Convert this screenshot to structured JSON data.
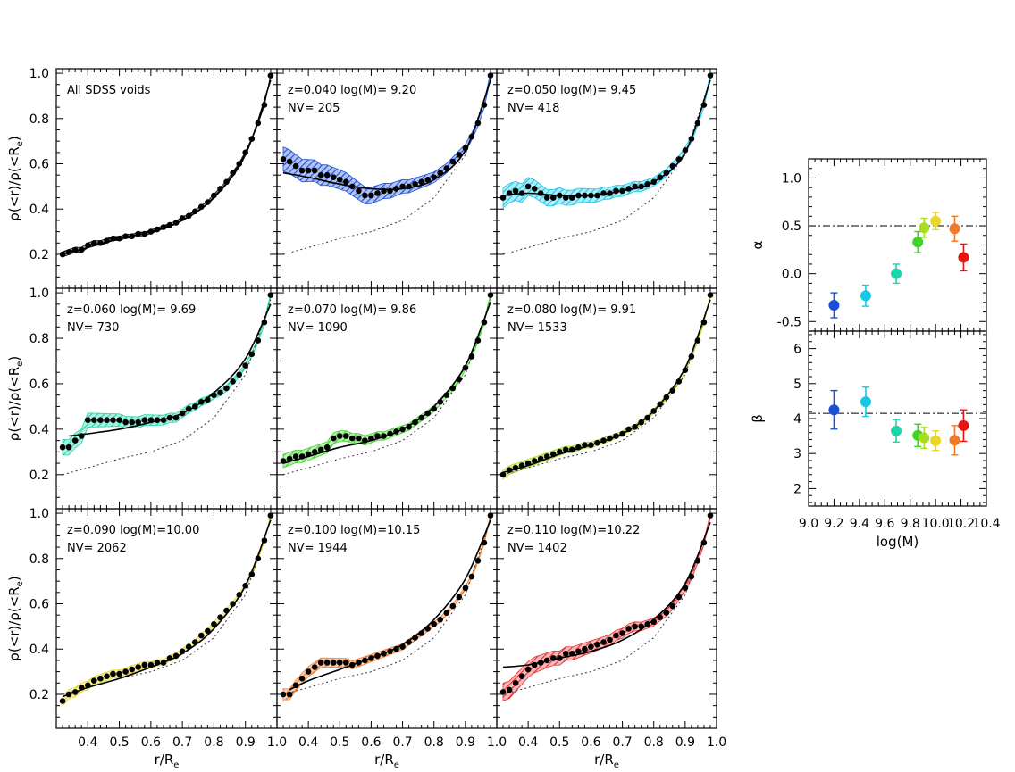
{
  "chart_data": [
    {
      "type": "scatter",
      "panel": "All SDSS voids",
      "label_line1": "All SDSS voids",
      "label_line2": "",
      "color": "#000000",
      "band_half": 0.012,
      "x": [
        0.32,
        0.34,
        0.36,
        0.38,
        0.4,
        0.42,
        0.44,
        0.46,
        0.48,
        0.5,
        0.52,
        0.54,
        0.56,
        0.58,
        0.6,
        0.62,
        0.64,
        0.66,
        0.68,
        0.7,
        0.72,
        0.74,
        0.76,
        0.78,
        0.8,
        0.82,
        0.84,
        0.86,
        0.88,
        0.9,
        0.92,
        0.94,
        0.96,
        0.98
      ],
      "y": [
        0.2,
        0.21,
        0.22,
        0.22,
        0.24,
        0.25,
        0.25,
        0.26,
        0.27,
        0.27,
        0.28,
        0.28,
        0.29,
        0.29,
        0.3,
        0.31,
        0.32,
        0.33,
        0.34,
        0.36,
        0.37,
        0.39,
        0.41,
        0.43,
        0.46,
        0.49,
        0.52,
        0.56,
        0.6,
        0.65,
        0.71,
        0.78,
        0.86,
        0.99
      ],
      "fit": [
        [
          0.32,
          0.2
        ],
        [
          0.4,
          0.23
        ],
        [
          0.5,
          0.27
        ],
        [
          0.6,
          0.3
        ],
        [
          0.7,
          0.35
        ],
        [
          0.8,
          0.45
        ],
        [
          0.9,
          0.64
        ],
        [
          0.98,
          0.97
        ]
      ]
    },
    {
      "type": "scatter",
      "panel": "z=0.040",
      "label_line1": "z=0.040 log(M)= 9.20",
      "label_line2": "NV= 205",
      "color": "#1c4fd8",
      "band_half": 0.055,
      "x": [
        0.32,
        0.34,
        0.36,
        0.38,
        0.4,
        0.42,
        0.44,
        0.46,
        0.48,
        0.5,
        0.52,
        0.54,
        0.56,
        0.58,
        0.6,
        0.62,
        0.64,
        0.66,
        0.68,
        0.7,
        0.72,
        0.74,
        0.76,
        0.78,
        0.8,
        0.82,
        0.84,
        0.86,
        0.88,
        0.9,
        0.92,
        0.94,
        0.96,
        0.98
      ],
      "y": [
        0.62,
        0.61,
        0.59,
        0.57,
        0.57,
        0.57,
        0.55,
        0.55,
        0.54,
        0.53,
        0.52,
        0.5,
        0.48,
        0.46,
        0.46,
        0.47,
        0.48,
        0.48,
        0.49,
        0.5,
        0.5,
        0.51,
        0.52,
        0.53,
        0.54,
        0.56,
        0.58,
        0.61,
        0.64,
        0.67,
        0.72,
        0.78,
        0.86,
        0.99
      ],
      "fit": [
        [
          0.32,
          0.56
        ],
        [
          0.4,
          0.54
        ],
        [
          0.5,
          0.51
        ],
        [
          0.6,
          0.49
        ],
        [
          0.7,
          0.49
        ],
        [
          0.8,
          0.53
        ],
        [
          0.9,
          0.66
        ],
        [
          0.98,
          0.97
        ]
      ]
    },
    {
      "type": "scatter",
      "panel": "z=0.050",
      "label_line1": "z=0.050 log(M)= 9.45",
      "label_line2": "NV= 418",
      "color": "#16c8e8",
      "band_half": 0.045,
      "x": [
        0.32,
        0.34,
        0.36,
        0.38,
        0.4,
        0.42,
        0.44,
        0.46,
        0.48,
        0.5,
        0.52,
        0.54,
        0.56,
        0.58,
        0.6,
        0.62,
        0.64,
        0.66,
        0.68,
        0.7,
        0.72,
        0.74,
        0.76,
        0.78,
        0.8,
        0.82,
        0.84,
        0.86,
        0.88,
        0.9,
        0.92,
        0.94,
        0.96,
        0.98
      ],
      "y": [
        0.45,
        0.47,
        0.48,
        0.47,
        0.5,
        0.49,
        0.47,
        0.45,
        0.45,
        0.46,
        0.45,
        0.45,
        0.46,
        0.46,
        0.46,
        0.46,
        0.47,
        0.47,
        0.48,
        0.48,
        0.49,
        0.5,
        0.5,
        0.51,
        0.52,
        0.54,
        0.56,
        0.59,
        0.62,
        0.66,
        0.71,
        0.78,
        0.86,
        0.99
      ],
      "fit": [
        [
          0.32,
          0.46
        ],
        [
          0.4,
          0.47
        ],
        [
          0.5,
          0.46
        ],
        [
          0.6,
          0.46
        ],
        [
          0.7,
          0.48
        ],
        [
          0.8,
          0.52
        ],
        [
          0.9,
          0.65
        ],
        [
          0.98,
          0.97
        ]
      ]
    },
    {
      "type": "scatter",
      "panel": "z=0.060",
      "label_line1": "z=0.060 log(M)= 9.69",
      "label_line2": "NV= 730",
      "color": "#1fd4a8",
      "band_half": 0.035,
      "x": [
        0.32,
        0.34,
        0.36,
        0.38,
        0.4,
        0.42,
        0.44,
        0.46,
        0.48,
        0.5,
        0.52,
        0.54,
        0.56,
        0.58,
        0.6,
        0.62,
        0.64,
        0.66,
        0.68,
        0.7,
        0.72,
        0.74,
        0.76,
        0.78,
        0.8,
        0.82,
        0.84,
        0.86,
        0.88,
        0.9,
        0.92,
        0.94,
        0.96,
        0.98
      ],
      "y": [
        0.32,
        0.32,
        0.35,
        0.37,
        0.44,
        0.44,
        0.44,
        0.44,
        0.44,
        0.44,
        0.43,
        0.43,
        0.43,
        0.44,
        0.44,
        0.44,
        0.44,
        0.45,
        0.45,
        0.47,
        0.49,
        0.5,
        0.52,
        0.53,
        0.55,
        0.56,
        0.58,
        0.61,
        0.64,
        0.68,
        0.73,
        0.79,
        0.87,
        0.99
      ],
      "fit": [
        [
          0.34,
          0.37
        ],
        [
          0.4,
          0.38
        ],
        [
          0.5,
          0.4
        ],
        [
          0.6,
          0.43
        ],
        [
          0.7,
          0.47
        ],
        [
          0.8,
          0.56
        ],
        [
          0.9,
          0.71
        ],
        [
          0.98,
          0.95
        ]
      ]
    },
    {
      "type": "scatter",
      "panel": "z=0.070",
      "label_line1": "z=0.070 log(M)= 9.86",
      "label_line2": "NV= 1090",
      "color": "#3fd32a",
      "band_half": 0.03,
      "x": [
        0.32,
        0.34,
        0.36,
        0.38,
        0.4,
        0.42,
        0.44,
        0.46,
        0.48,
        0.5,
        0.52,
        0.54,
        0.56,
        0.58,
        0.6,
        0.62,
        0.64,
        0.66,
        0.68,
        0.7,
        0.72,
        0.74,
        0.76,
        0.78,
        0.8,
        0.82,
        0.84,
        0.86,
        0.88,
        0.9,
        0.92,
        0.94,
        0.96,
        0.98
      ],
      "y": [
        0.26,
        0.27,
        0.28,
        0.28,
        0.29,
        0.3,
        0.31,
        0.32,
        0.36,
        0.37,
        0.37,
        0.36,
        0.36,
        0.35,
        0.36,
        0.37,
        0.37,
        0.38,
        0.39,
        0.4,
        0.41,
        0.43,
        0.45,
        0.47,
        0.49,
        0.52,
        0.55,
        0.58,
        0.62,
        0.67,
        0.72,
        0.79,
        0.87,
        0.99
      ],
      "fit": [
        [
          0.32,
          0.25
        ],
        [
          0.4,
          0.28
        ],
        [
          0.5,
          0.32
        ],
        [
          0.6,
          0.35
        ],
        [
          0.7,
          0.4
        ],
        [
          0.8,
          0.5
        ],
        [
          0.9,
          0.68
        ],
        [
          0.98,
          0.96
        ]
      ]
    },
    {
      "type": "scatter",
      "panel": "z=0.080",
      "label_line1": "z=0.080 log(M)= 9.91",
      "label_line2": "NV= 1533",
      "color": "#a8dc1e",
      "band_half": 0.02,
      "x": [
        0.32,
        0.34,
        0.36,
        0.38,
        0.4,
        0.42,
        0.44,
        0.46,
        0.48,
        0.5,
        0.52,
        0.54,
        0.56,
        0.58,
        0.6,
        0.62,
        0.64,
        0.66,
        0.68,
        0.7,
        0.72,
        0.74,
        0.76,
        0.78,
        0.8,
        0.82,
        0.84,
        0.86,
        0.88,
        0.9,
        0.92,
        0.94,
        0.96,
        0.98
      ],
      "y": [
        0.2,
        0.22,
        0.23,
        0.24,
        0.25,
        0.26,
        0.27,
        0.28,
        0.29,
        0.3,
        0.31,
        0.31,
        0.32,
        0.33,
        0.33,
        0.34,
        0.35,
        0.36,
        0.37,
        0.38,
        0.4,
        0.41,
        0.43,
        0.45,
        0.48,
        0.51,
        0.54,
        0.57,
        0.61,
        0.66,
        0.72,
        0.79,
        0.87,
        0.99
      ],
      "fit": [
        [
          0.32,
          0.21
        ],
        [
          0.4,
          0.24
        ],
        [
          0.5,
          0.29
        ],
        [
          0.6,
          0.33
        ],
        [
          0.7,
          0.38
        ],
        [
          0.8,
          0.48
        ],
        [
          0.9,
          0.67
        ],
        [
          0.98,
          0.97
        ]
      ]
    },
    {
      "type": "scatter",
      "panel": "z=0.090",
      "label_line1": "z=0.090 log(M)=10.00",
      "label_line2": "NV= 2062",
      "color": "#e8d62a",
      "band_half": 0.022,
      "x": [
        0.32,
        0.34,
        0.36,
        0.38,
        0.4,
        0.42,
        0.44,
        0.46,
        0.48,
        0.5,
        0.52,
        0.54,
        0.56,
        0.58,
        0.6,
        0.62,
        0.64,
        0.66,
        0.68,
        0.7,
        0.72,
        0.74,
        0.76,
        0.78,
        0.8,
        0.82,
        0.84,
        0.86,
        0.88,
        0.9,
        0.92,
        0.94,
        0.96,
        0.98
      ],
      "y": [
        0.17,
        0.2,
        0.21,
        0.23,
        0.24,
        0.26,
        0.27,
        0.28,
        0.29,
        0.29,
        0.3,
        0.31,
        0.32,
        0.33,
        0.33,
        0.34,
        0.34,
        0.36,
        0.37,
        0.39,
        0.41,
        0.43,
        0.46,
        0.48,
        0.51,
        0.54,
        0.57,
        0.6,
        0.64,
        0.68,
        0.73,
        0.8,
        0.88,
        0.99
      ],
      "fit": [
        [
          0.32,
          0.19
        ],
        [
          0.4,
          0.23
        ],
        [
          0.5,
          0.27
        ],
        [
          0.6,
          0.32
        ],
        [
          0.7,
          0.38
        ],
        [
          0.8,
          0.49
        ],
        [
          0.9,
          0.68
        ],
        [
          0.98,
          0.97
        ]
      ]
    },
    {
      "type": "scatter",
      "panel": "z=0.100",
      "label_line1": "z=0.100 log(M)=10.15",
      "label_line2": "NV= 1944",
      "color": "#f07a2a",
      "band_half": 0.025,
      "x": [
        0.32,
        0.34,
        0.36,
        0.38,
        0.4,
        0.42,
        0.44,
        0.46,
        0.48,
        0.5,
        0.52,
        0.54,
        0.56,
        0.58,
        0.6,
        0.62,
        0.64,
        0.66,
        0.68,
        0.7,
        0.72,
        0.74,
        0.76,
        0.78,
        0.8,
        0.82,
        0.84,
        0.86,
        0.88,
        0.9,
        0.92,
        0.94,
        0.96,
        0.98
      ],
      "y": [
        0.2,
        0.2,
        0.24,
        0.27,
        0.3,
        0.32,
        0.34,
        0.34,
        0.34,
        0.34,
        0.34,
        0.33,
        0.34,
        0.35,
        0.36,
        0.37,
        0.38,
        0.39,
        0.4,
        0.41,
        0.43,
        0.45,
        0.47,
        0.49,
        0.51,
        0.53,
        0.56,
        0.59,
        0.63,
        0.67,
        0.72,
        0.79,
        0.87,
        0.99
      ],
      "fit": [
        [
          0.34,
          0.22
        ],
        [
          0.4,
          0.26
        ],
        [
          0.5,
          0.31
        ],
        [
          0.6,
          0.36
        ],
        [
          0.7,
          0.42
        ],
        [
          0.8,
          0.53
        ],
        [
          0.9,
          0.71
        ],
        [
          0.98,
          0.97
        ]
      ]
    },
    {
      "type": "scatter",
      "panel": "z=0.110",
      "label_line1": "z=0.110 log(M)=10.22",
      "label_line2": "NV= 1402",
      "color": "#e83030",
      "band_half": 0.04,
      "x": [
        0.32,
        0.34,
        0.36,
        0.38,
        0.4,
        0.42,
        0.44,
        0.46,
        0.48,
        0.5,
        0.52,
        0.54,
        0.56,
        0.58,
        0.6,
        0.62,
        0.64,
        0.66,
        0.68,
        0.7,
        0.72,
        0.74,
        0.76,
        0.78,
        0.8,
        0.82,
        0.84,
        0.86,
        0.88,
        0.9,
        0.92,
        0.94,
        0.96,
        0.98
      ],
      "y": [
        0.21,
        0.22,
        0.25,
        0.28,
        0.31,
        0.33,
        0.34,
        0.35,
        0.36,
        0.36,
        0.38,
        0.38,
        0.39,
        0.4,
        0.41,
        0.42,
        0.43,
        0.44,
        0.46,
        0.47,
        0.49,
        0.5,
        0.5,
        0.51,
        0.52,
        0.54,
        0.56,
        0.59,
        0.63,
        0.67,
        0.72,
        0.79,
        0.87,
        0.99
      ],
      "fit": [
        [
          0.32,
          0.32
        ],
        [
          0.4,
          0.33
        ],
        [
          0.5,
          0.36
        ],
        [
          0.6,
          0.39
        ],
        [
          0.7,
          0.44
        ],
        [
          0.8,
          0.53
        ],
        [
          0.9,
          0.69
        ],
        [
          0.98,
          0.96
        ]
      ]
    },
    {
      "type": "scatter",
      "panel": "alpha",
      "x": [
        9.2,
        9.45,
        9.69,
        9.86,
        9.91,
        10.0,
        10.15,
        10.22
      ],
      "y": [
        -0.33,
        -0.23,
        0.0,
        0.33,
        0.48,
        0.55,
        0.47,
        0.17
      ],
      "yerr": [
        0.13,
        0.11,
        0.1,
        0.11,
        0.1,
        0.09,
        0.13,
        0.14
      ],
      "colors": [
        "#1c4fd8",
        "#16c8e8",
        "#1fd4a8",
        "#3fd32a",
        "#a8dc1e",
        "#e8d62a",
        "#f07a2a",
        "#e81414"
      ],
      "ref_line": 0.5
    },
    {
      "type": "scatter",
      "panel": "beta",
      "x": [
        9.2,
        9.45,
        9.69,
        9.86,
        9.91,
        10.0,
        10.15,
        10.22
      ],
      "y": [
        4.25,
        4.48,
        3.65,
        3.52,
        3.45,
        3.37,
        3.38,
        3.8
      ],
      "yerr": [
        0.55,
        0.42,
        0.32,
        0.32,
        0.3,
        0.28,
        0.42,
        0.45
      ],
      "colors": [
        "#1c4fd8",
        "#16c8e8",
        "#1fd4a8",
        "#3fd32a",
        "#a8dc1e",
        "#e8d62a",
        "#f07a2a",
        "#e81414"
      ],
      "ref_line": 4.15
    }
  ],
  "axes": {
    "left_x_ticks": [
      "0.4",
      "0.5",
      "0.6",
      "0.7",
      "0.8",
      "0.9",
      "1.0"
    ],
    "left_y_ticks": [
      "0.2",
      "0.4",
      "0.6",
      "0.8",
      "1.0"
    ],
    "left_xlabel": "r/R",
    "left_xlabel_sub": "e",
    "left_ylabel": "ρ(<r)/ρ(<R",
    "left_ylabel_sub": "e",
    "left_ylabel_close": ")",
    "right_x_ticks": [
      "9.0",
      "9.2",
      "9.4",
      "9.6",
      "9.8",
      "10.0",
      "10.2",
      "10.4"
    ],
    "right_xlabel": "log(M)",
    "alpha_ticks": [
      "-0.5",
      "0.0",
      "0.5",
      "1.0"
    ],
    "alpha_label": "α",
    "beta_ticks": [
      "2",
      "3",
      "4",
      "5",
      "6"
    ],
    "beta_label": "β"
  }
}
